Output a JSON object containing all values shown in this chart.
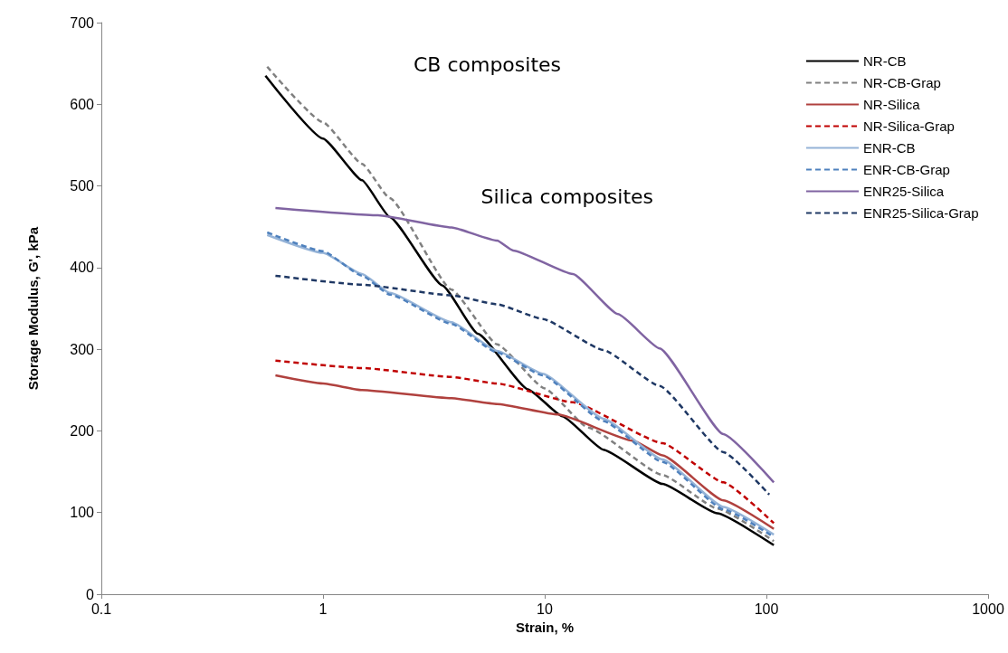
{
  "chart_data": {
    "type": "line",
    "xlabel": "Strain, %",
    "ylabel": "Storage Modulus, G', kPa",
    "log": "x",
    "xlim": [
      0.1,
      1000
    ],
    "xticks": [
      0.1,
      1,
      10,
      100,
      1000
    ],
    "ylim": [
      0,
      700
    ],
    "yticks": [
      0,
      100,
      200,
      300,
      400,
      500,
      600,
      700
    ],
    "grid": false,
    "legend": "top right",
    "marker": "none",
    "annotations": [
      "CB composites",
      "Silica composites"
    ],
    "series": [
      {
        "name": "NR-CB",
        "color": "#000000",
        "line_style": "solid",
        "x": [
          0.55,
          1,
          1.5,
          2,
          3.46,
          5,
          8.4,
          12,
          18.4,
          34,
          60,
          108
        ],
        "values": [
          635,
          558,
          507,
          462,
          378,
          319,
          251,
          218,
          177,
          135,
          99,
          60
        ]
      },
      {
        "name": "NR-CB-Grap",
        "color": "#808080",
        "line_style": "dashed",
        "x": [
          0.56,
          1,
          1.5,
          2,
          3.8,
          6.1,
          10,
          15.7,
          34,
          60,
          108
        ],
        "values": [
          646,
          578,
          527,
          485,
          373,
          306,
          252,
          204,
          146,
          105,
          65
        ]
      },
      {
        "name": "NR-Silica",
        "color": "#b0413e",
        "line_style": "solid",
        "x": [
          0.61,
          1,
          1.5,
          3.8,
          6.1,
          11.5,
          25,
          34,
          64,
          108
        ],
        "values": [
          268,
          258,
          250,
          240,
          233,
          220,
          188,
          170,
          115,
          80
        ]
      },
      {
        "name": "NR-Silica-Grap",
        "color": "#c00000",
        "line_style": "dashed",
        "x": [
          0.61,
          1.5,
          3.8,
          6.1,
          13.4,
          34,
          64,
          108
        ],
        "values": [
          286,
          277,
          266,
          258,
          235,
          185,
          137,
          87
        ]
      },
      {
        "name": "ENR-CB",
        "color": "#95b3d7",
        "line_style": "solid",
        "x": [
          0.56,
          1,
          1.5,
          2,
          3.8,
          6.1,
          9.8,
          18.4,
          34,
          64,
          108
        ],
        "values": [
          440,
          418,
          392,
          369,
          333,
          298,
          270,
          215,
          165,
          107,
          73
        ]
      },
      {
        "name": "ENR-CB-Grap",
        "color": "#4f81bd",
        "line_style": "dashed",
        "x": [
          0.56,
          1,
          1.5,
          2,
          3.8,
          6.1,
          9.8,
          18.4,
          34,
          64,
          108
        ],
        "values": [
          443,
          420,
          390,
          367,
          331,
          296,
          268,
          212,
          162,
          104,
          70
        ]
      },
      {
        "name": "ENR25-Silica",
        "color": "#8064a2",
        "line_style": "solid",
        "x": [
          0.61,
          1.77,
          3.8,
          6.1,
          7.2,
          13.4,
          21.4,
          33,
          64,
          108
        ],
        "values": [
          473,
          464,
          449,
          433,
          421,
          392,
          343,
          301,
          196,
          137
        ]
      },
      {
        "name": "ENR25-Silica-Grap",
        "color": "#1f3864",
        "line_style": "dashed",
        "x": [
          0.61,
          1.5,
          3.8,
          6.1,
          9.8,
          18.4,
          33,
          64,
          103
        ],
        "values": [
          390,
          379,
          366,
          355,
          337,
          299,
          255,
          174,
          122
        ]
      }
    ]
  }
}
